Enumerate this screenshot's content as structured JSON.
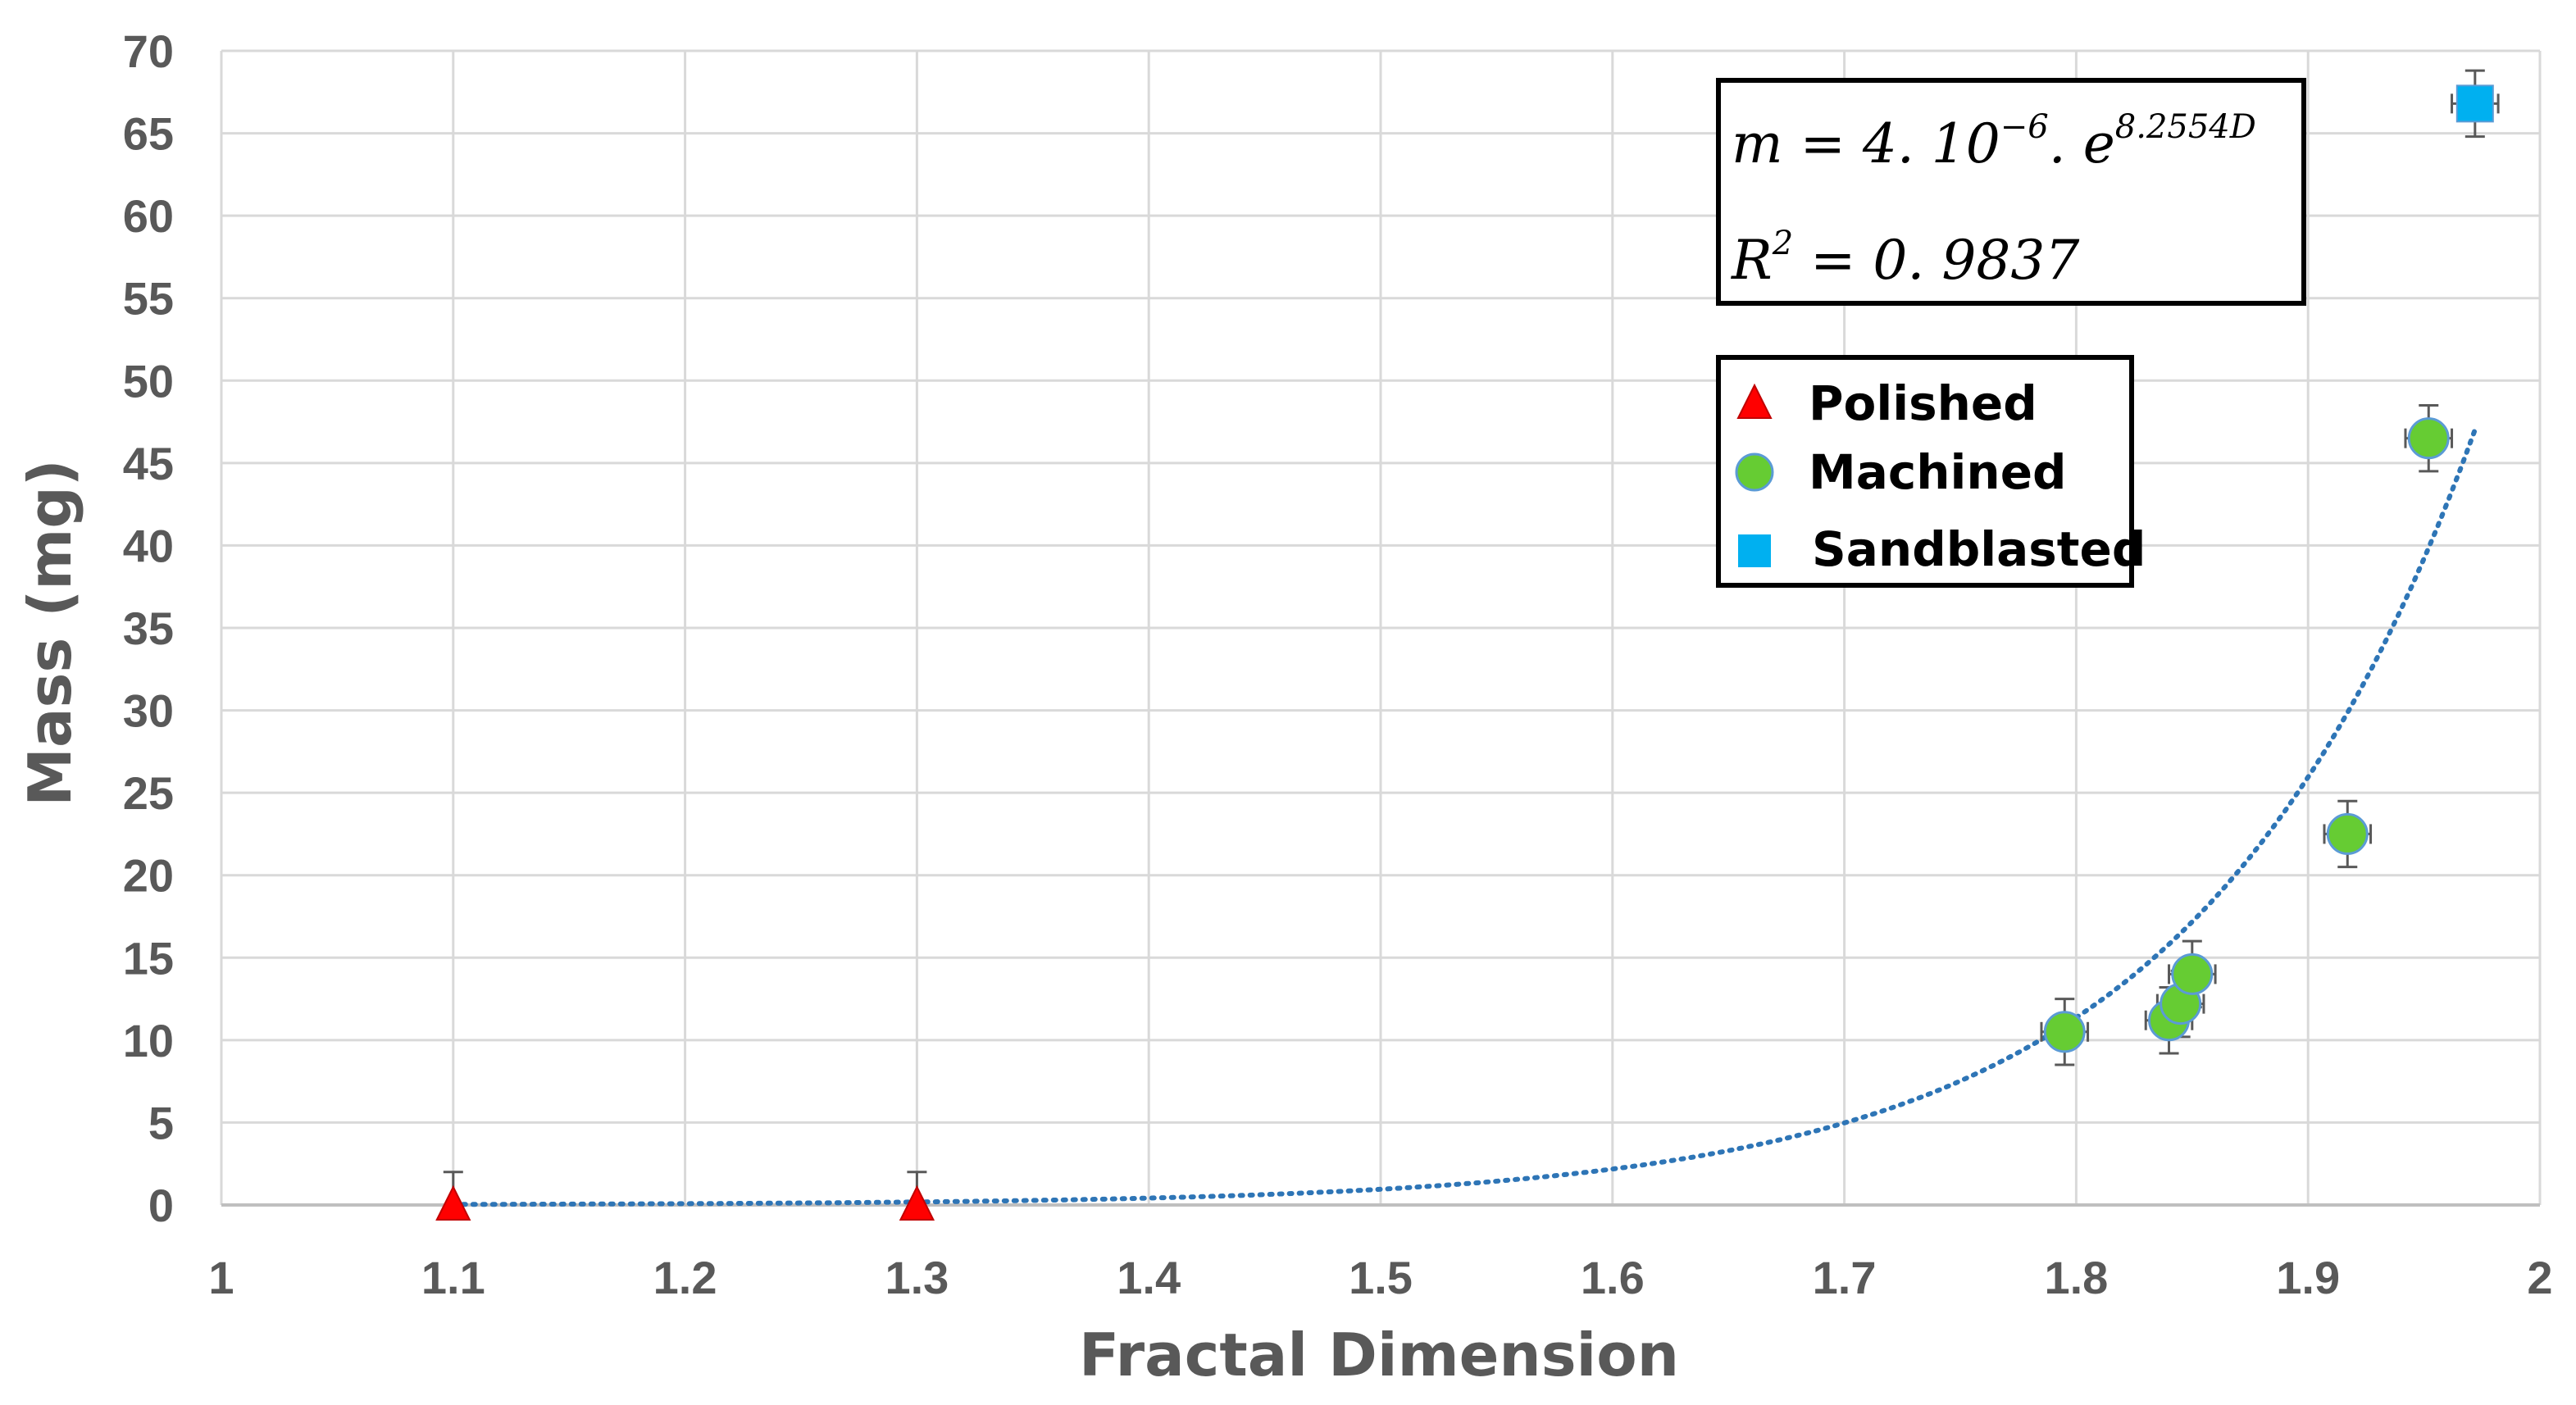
{
  "chart_data": {
    "type": "scatter",
    "xlabel": "Fractal Dimension",
    "ylabel": "Mass (mg)",
    "xlim": [
      1,
      2
    ],
    "ylim": [
      0,
      70
    ],
    "x_ticks": [
      "1",
      "1.1",
      "1.2",
      "1.3",
      "1.4",
      "1.5",
      "1.6",
      "1.7",
      "1.8",
      "1.9",
      "2"
    ],
    "y_ticks": [
      "0",
      "5",
      "10",
      "15",
      "20",
      "25",
      "30",
      "35",
      "40",
      "45",
      "50",
      "55",
      "60",
      "65",
      "70"
    ],
    "grid": true,
    "legend_position": "right-middle",
    "series": [
      {
        "name": "Polished",
        "marker": "triangle",
        "color": "#ff0000",
        "points": [
          {
            "x": 1.1,
            "y": 0,
            "yerr": 2.0,
            "xerr": 0
          },
          {
            "x": 1.3,
            "y": 0,
            "yerr": 2.0,
            "xerr": 0
          }
        ]
      },
      {
        "name": "Machined",
        "marker": "circle",
        "color": "#66cc33",
        "points": [
          {
            "x": 1.795,
            "y": 10.5,
            "yerr": 2.0,
            "xerr": 0.01
          },
          {
            "x": 1.84,
            "y": 11.2,
            "yerr": 2.0,
            "xerr": 0.01
          },
          {
            "x": 1.845,
            "y": 12.2,
            "yerr": 2.0,
            "xerr": 0.01
          },
          {
            "x": 1.85,
            "y": 14.0,
            "yerr": 2.0,
            "xerr": 0.01
          },
          {
            "x": 1.917,
            "y": 22.5,
            "yerr": 2.0,
            "xerr": 0.01
          },
          {
            "x": 1.952,
            "y": 46.5,
            "yerr": 2.0,
            "xerr": 0.01
          }
        ]
      },
      {
        "name": "Sandblasted",
        "marker": "square",
        "color": "#00b0f0",
        "points": [
          {
            "x": 1.972,
            "y": 66.8,
            "yerr": 2.0,
            "xerr": 0.01
          }
        ]
      }
    ],
    "trendline": {
      "type": "exponential",
      "a": 4e-06,
      "b": 8.2554,
      "x_range": [
        1.1,
        1.972
      ],
      "color": "#2e75b6",
      "style": "dotted"
    },
    "equation": {
      "line1_main": "m = 4. 10",
      "line1_exp": "−6",
      "line1_mid": ". e",
      "line1_exp2": "8.2554D",
      "line2_main": "R",
      "line2_exp": "2",
      "line2_rest": " = 0. 9837"
    }
  }
}
